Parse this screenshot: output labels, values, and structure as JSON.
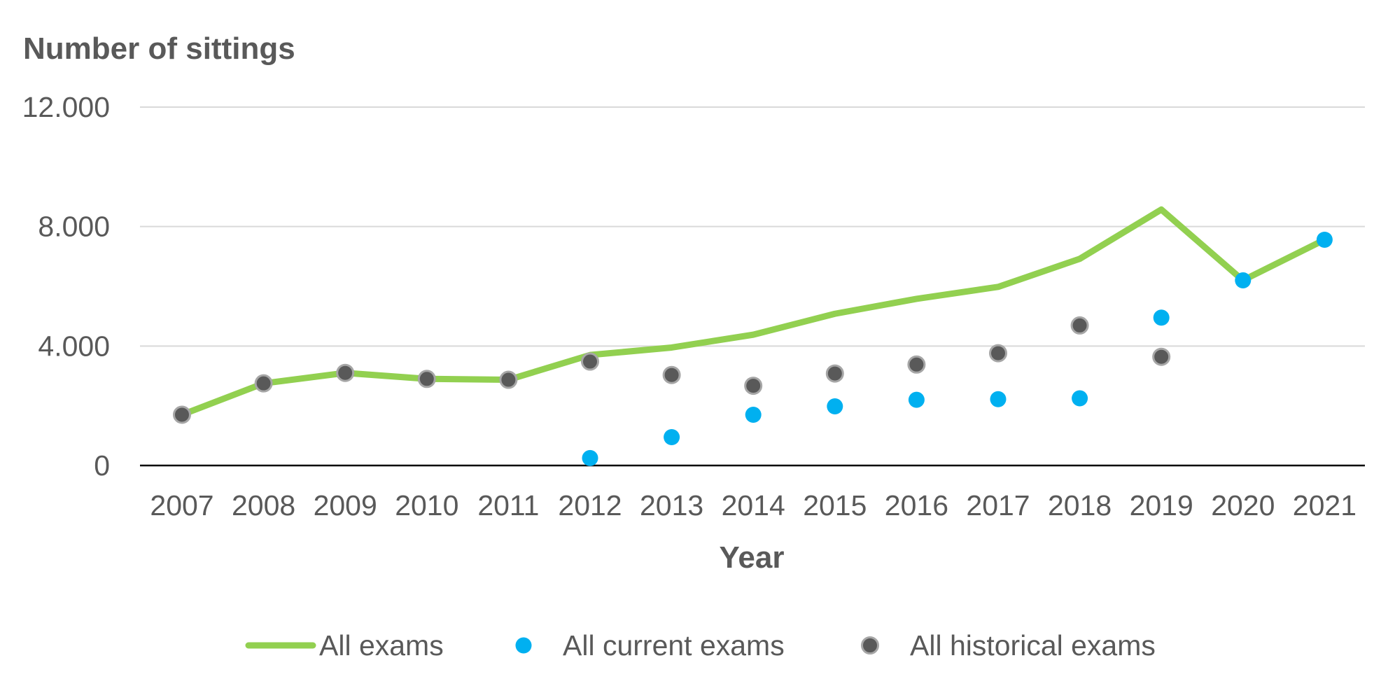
{
  "chart_data": {
    "type": "line",
    "ylabel": "Number of sittings",
    "xlabel": "Year",
    "categories": [
      "2007",
      "2008",
      "2009",
      "2010",
      "2011",
      "2012",
      "2013",
      "2014",
      "2015",
      "2016",
      "2017",
      "2018",
      "2019",
      "2020",
      "2021"
    ],
    "ylim": [
      0,
      12000
    ],
    "yticks": [
      0,
      4000,
      8000,
      12000
    ],
    "ytick_labels": [
      "0",
      "4.000",
      "8.000",
      "12.000"
    ],
    "grid": true,
    "legend_position": "bottom",
    "series": [
      {
        "name": "All exams",
        "kind": "line",
        "color": "#92D050",
        "values": [
          1700,
          2750,
          3100,
          2900,
          2870,
          3700,
          3950,
          4380,
          5080,
          5580,
          5980,
          6920,
          8570,
          6200,
          7560
        ]
      },
      {
        "name": "All current exams",
        "kind": "marker",
        "color": "#00B0F0",
        "values": [
          null,
          null,
          null,
          null,
          null,
          250,
          950,
          1700,
          1980,
          2200,
          2220,
          2250,
          4950,
          6200,
          7560
        ]
      },
      {
        "name": "All historical exams",
        "kind": "marker",
        "color": "#595959",
        "values": [
          1700,
          2750,
          3100,
          2900,
          2870,
          3480,
          3030,
          2670,
          3080,
          3380,
          3760,
          4690,
          3640,
          null,
          null
        ]
      }
    ]
  },
  "style": {
    "text_color": "#595959",
    "grid_color": "#D9D9D9",
    "axis_color": "#000000",
    "marker_outline": "#A6A6A6"
  }
}
